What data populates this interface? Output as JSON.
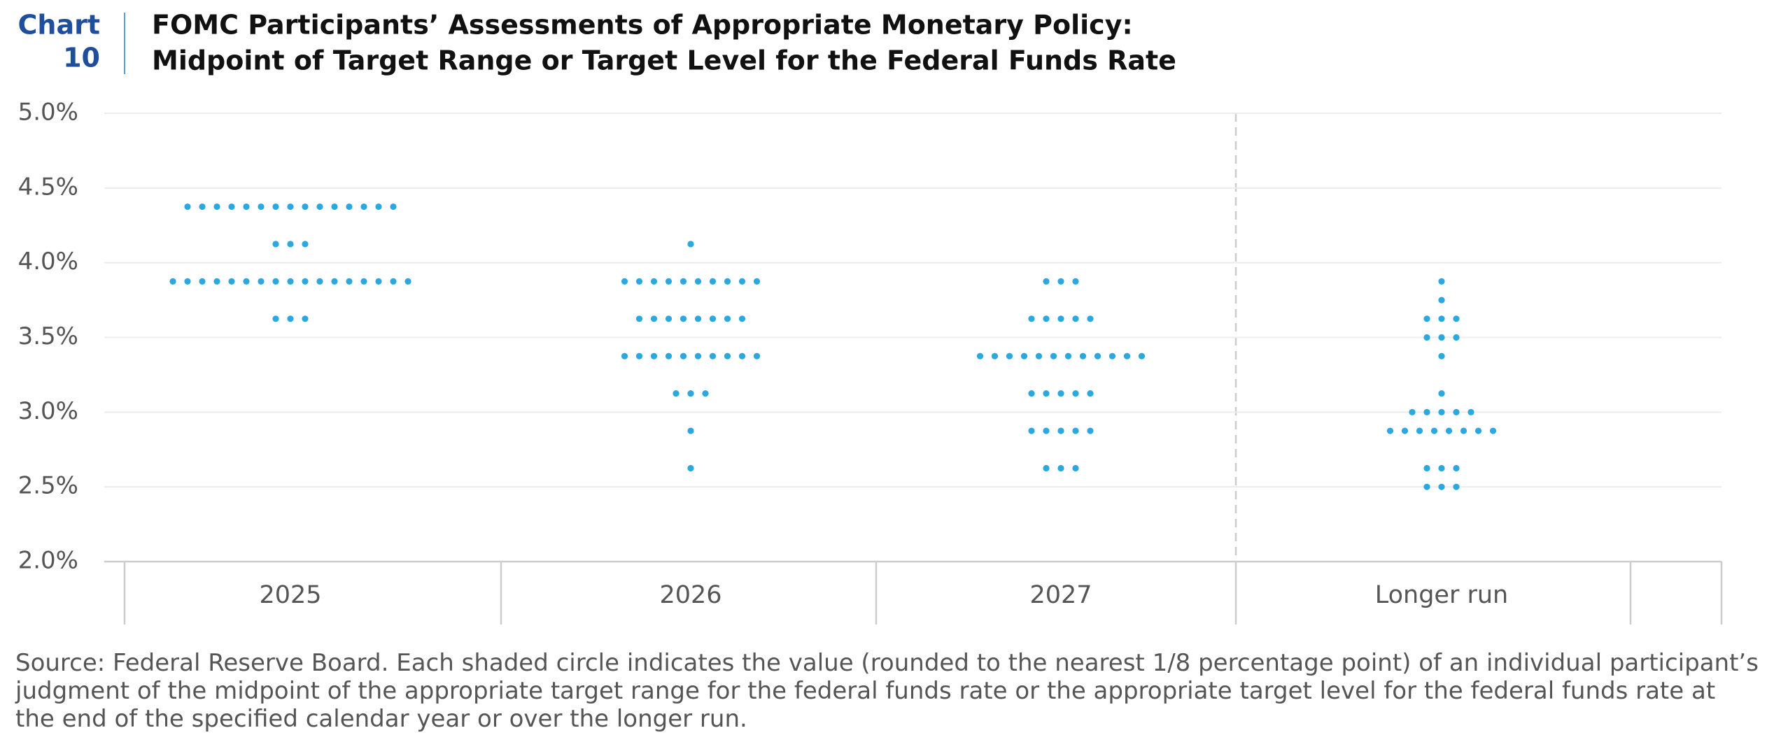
{
  "chart_data": {
    "type": "dot",
    "chart_label": "Chart",
    "chart_number": "10",
    "title": "FOMC Participants’ Assessments of Appropriate Monetary Policy:",
    "subtitle": "Midpoint of Target Range or Target Level for the Federal Funds Rate",
    "categories": [
      "2025",
      "2026",
      "2027",
      "Longer run"
    ],
    "color": "#2ba8e0",
    "points": [
      [
        {
          "y": 4.375,
          "count": 15
        },
        {
          "y": 4.125,
          "count": 3
        },
        {
          "y": 3.875,
          "count": 17
        },
        {
          "y": 3.625,
          "count": 3
        }
      ],
      [
        {
          "y": 4.125,
          "count": 1
        },
        {
          "y": 3.875,
          "count": 10
        },
        {
          "y": 3.625,
          "count": 8
        },
        {
          "y": 3.375,
          "count": 10
        },
        {
          "y": 3.125,
          "count": 3
        },
        {
          "y": 2.875,
          "count": 1
        },
        {
          "y": 2.625,
          "count": 1
        }
      ],
      [
        {
          "y": 3.875,
          "count": 3
        },
        {
          "y": 3.625,
          "count": 5
        },
        {
          "y": 3.375,
          "count": 12
        },
        {
          "y": 3.125,
          "count": 5
        },
        {
          "y": 2.875,
          "count": 5
        },
        {
          "y": 2.625,
          "count": 3
        }
      ],
      [
        {
          "y": 3.875,
          "count": 1
        },
        {
          "y": 3.75,
          "count": 1
        },
        {
          "y": 3.625,
          "count": 3
        },
        {
          "y": 3.5,
          "count": 3
        },
        {
          "y": 3.375,
          "count": 1
        },
        {
          "y": 3.125,
          "count": 1
        },
        {
          "y": 3.0,
          "count": 5
        },
        {
          "y": 2.875,
          "count": 8
        },
        {
          "y": 2.625,
          "count": 3
        },
        {
          "y": 2.5,
          "count": 3
        }
      ]
    ],
    "ylim": [
      2.0,
      5.0
    ],
    "yticks": [
      {
        "value": 2.0,
        "label": "2.0%"
      },
      {
        "value": 2.5,
        "label": "2.5%"
      },
      {
        "value": 3.0,
        "label": "3.0%"
      },
      {
        "value": 3.5,
        "label": "3.5%"
      },
      {
        "value": 4.0,
        "label": "4.0%"
      },
      {
        "value": 4.5,
        "label": "4.5%"
      },
      {
        "value": 5.0,
        "label": "5.0%"
      }
    ],
    "grid": true,
    "source": "Source: Federal Reserve Board. Each shaded circle indicates the value (rounded to the nearest 1/8 percentage point) of an individual participant’s judgment of the midpoint of the appropriate target range for the federal funds rate or the appropriate target level for the federal funds rate at the end of the specified calendar year or over the longer run."
  }
}
